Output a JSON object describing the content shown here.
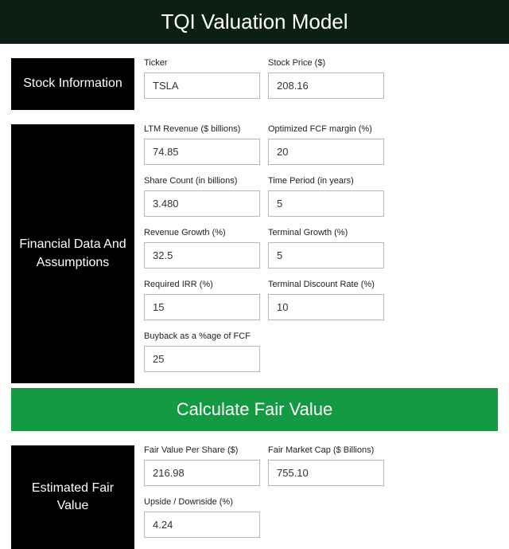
{
  "title": "TQI Valuation Model",
  "colors": {
    "title_bg": "#0b1f14",
    "label_bg": "#000000",
    "button_bg": "#139a43",
    "text_light": "#ffffff",
    "input_border": "#b8b8b8",
    "field_label": "#222222",
    "input_text": "#333333"
  },
  "sections": {
    "stock_info": {
      "label": "Stock Information",
      "fields": {
        "ticker": {
          "label": "Ticker",
          "value": "TSLA"
        },
        "price": {
          "label": "Stock Price ($)",
          "value": "208.16"
        }
      }
    },
    "financials": {
      "label": "Financial Data And Assumptions",
      "fields": {
        "ltm_rev": {
          "label": "LTM Revenue ($ billions)",
          "value": "74.85"
        },
        "fcf_margin": {
          "label": "Optimized FCF margin (%)",
          "value": "20"
        },
        "shares": {
          "label": "Share Count (in billions)",
          "value": "3.480"
        },
        "period": {
          "label": "Time Period (in years)",
          "value": "5"
        },
        "rev_growth": {
          "label": "Revenue Growth (%)",
          "value": "32.5"
        },
        "term_growth": {
          "label": "Terminal Growth (%)",
          "value": "5"
        },
        "irr": {
          "label": "Required IRR (%)",
          "value": "15"
        },
        "term_disc": {
          "label": "Terminal Discount Rate (%)",
          "value": "10"
        },
        "buyback": {
          "label": "Buyback as a %age of FCF",
          "value": "25"
        }
      }
    },
    "results": {
      "label": "Estimated Fair Value",
      "fields": {
        "fv_share": {
          "label": "Fair Value Per Share ($)",
          "value": "216.98"
        },
        "fv_mcap": {
          "label": "Fair Market Cap ($ Billions)",
          "value": "755.10"
        },
        "upside": {
          "label": "Upside / Downside (%)",
          "value": "4.24"
        }
      }
    }
  },
  "button": {
    "label": "Calculate Fair Value"
  }
}
